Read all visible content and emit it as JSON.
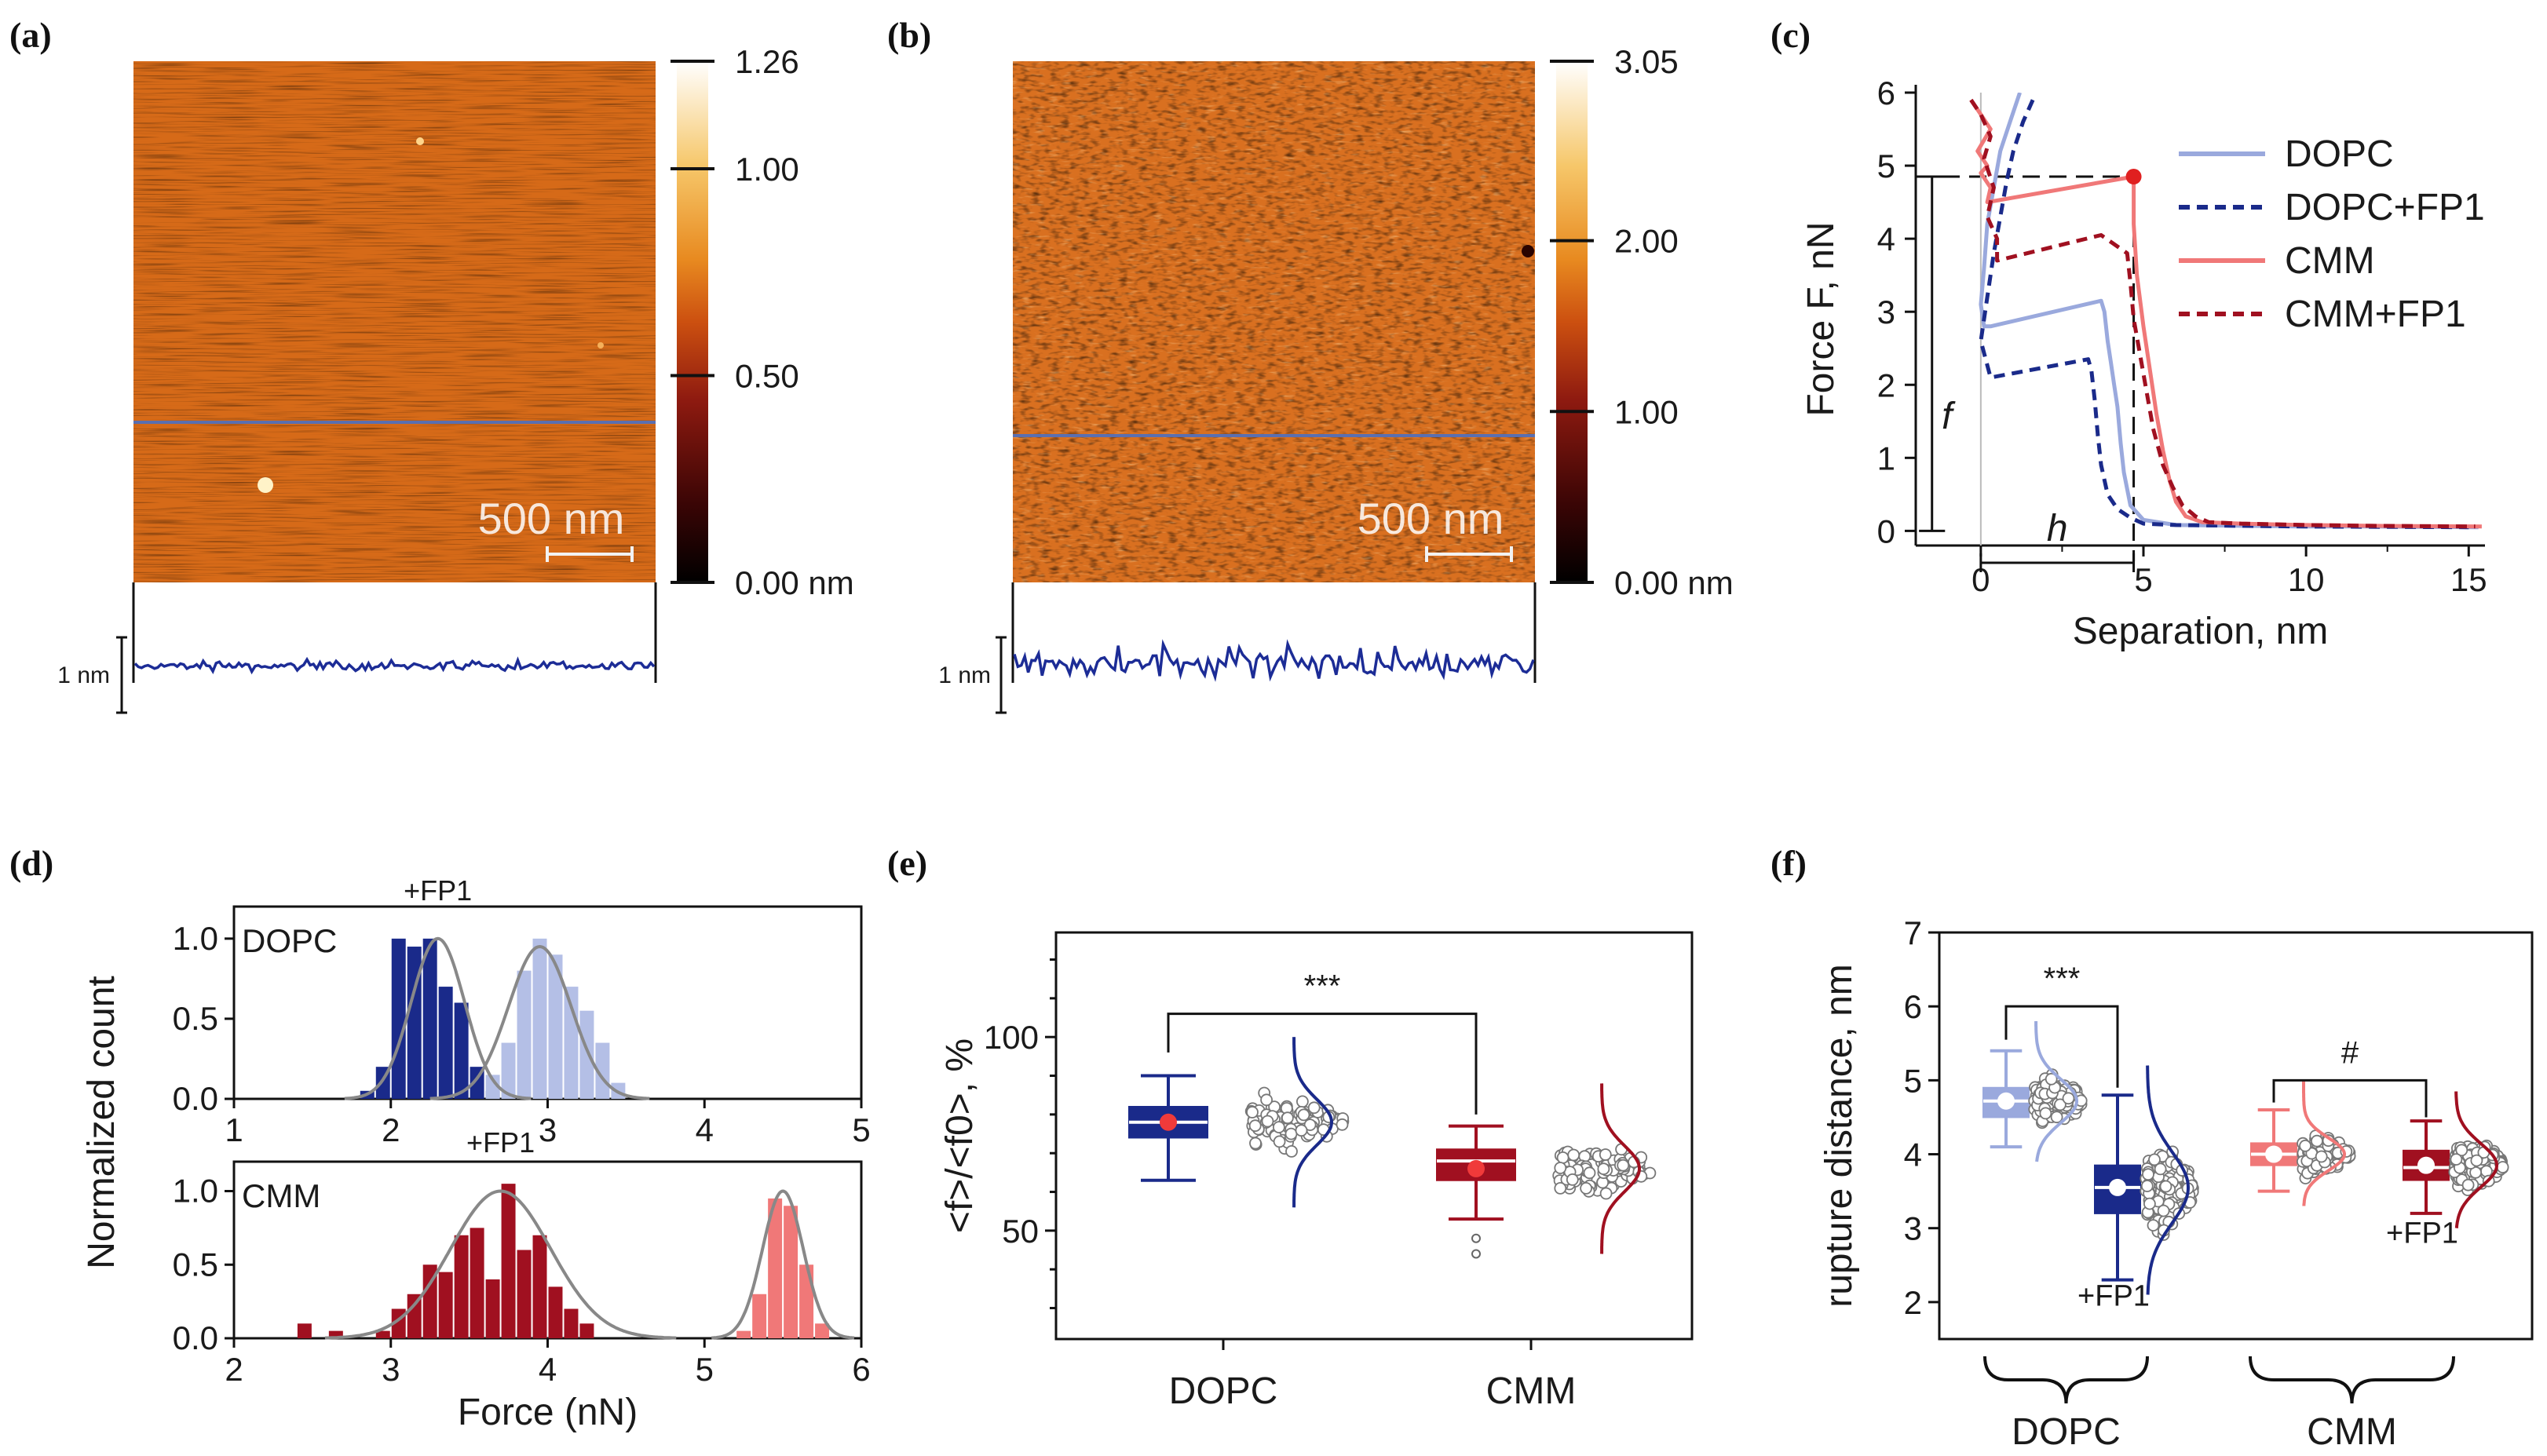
{
  "colors": {
    "dopc": "#9aa9dd",
    "dopc_fp1": "#1a2a8a",
    "cmm": "#f07878",
    "cmm_fp1": "#a01020",
    "fit": "#888888",
    "afm_line": "#5a6fb0",
    "profile": "#1c2c96"
  },
  "panels": {
    "a": {
      "label": "(a)",
      "colorbar_ticks": [
        "1.26",
        "1.00",
        "0.50",
        "0.00 nm"
      ],
      "colorbar_range": [
        0,
        1.26
      ],
      "colorbar_values": [
        1.26,
        1.0,
        0.5,
        0.0
      ],
      "scale_bar": "500 nm",
      "profile_scale": "1 nm"
    },
    "b": {
      "label": "(b)",
      "colorbar_ticks": [
        "3.05",
        "2.00",
        "1.00",
        "0.00 nm"
      ],
      "colorbar_range": [
        0,
        3.05
      ],
      "colorbar_values": [
        3.05,
        2.0,
        1.0,
        0.0
      ],
      "scale_bar": "500 nm",
      "profile_scale": "1 nm"
    },
    "c": {
      "label": "(c)"
    },
    "d": {
      "label": "(d)"
    },
    "e": {
      "label": "(e)"
    },
    "f": {
      "label": "(f)"
    }
  },
  "chart_data": [
    {
      "panel": "c",
      "type": "line",
      "xlabel": "Separation, nm",
      "ylabel": "Force F, nN",
      "xlim": [
        -2,
        15.5
      ],
      "ylim": [
        -0.2,
        6
      ],
      "xticks": [
        0,
        5,
        10,
        15
      ],
      "yticks": [
        0,
        1,
        2,
        3,
        4,
        5,
        6
      ],
      "annotations": [
        "f",
        "h"
      ],
      "series": [
        {
          "name": "DOPC",
          "style": "solid",
          "x": [
            1.2,
            0.9,
            0.6,
            0.4,
            0.2,
            0.1,
            0.0,
            0.1,
            0.3,
            3.7,
            3.8,
            3.9,
            4.0,
            4.1,
            4.2,
            4.3,
            4.4,
            4.6,
            5.0,
            6.0,
            8.0,
            10.0,
            12.0,
            15.3
          ],
          "y": [
            6.0,
            5.6,
            5.2,
            4.7,
            4.2,
            3.6,
            3.1,
            2.8,
            2.8,
            3.15,
            3.0,
            2.6,
            2.3,
            2.0,
            1.7,
            1.2,
            0.8,
            0.35,
            0.15,
            0.08,
            0.07,
            0.06,
            0.06,
            0.05
          ]
        },
        {
          "name": "DOPC+FP1",
          "style": "dashed",
          "x": [
            1.6,
            1.3,
            1.0,
            0.8,
            0.6,
            0.4,
            0.2,
            0.0,
            0.3,
            3.3,
            3.4,
            3.5,
            3.6,
            3.7,
            3.9,
            4.2,
            4.6,
            5.0,
            6.0,
            8.0,
            10.0,
            15.0
          ],
          "y": [
            5.9,
            5.6,
            5.2,
            4.8,
            4.3,
            3.8,
            3.2,
            2.6,
            2.1,
            2.35,
            2.2,
            1.8,
            1.3,
            0.9,
            0.5,
            0.3,
            0.18,
            0.1,
            0.08,
            0.07,
            0.06,
            0.05
          ]
        },
        {
          "name": "CMM",
          "style": "solid",
          "x": [
            -0.3,
            0.0,
            0.3,
            -0.1,
            0.2,
            0.0,
            0.3,
            0.2,
            4.7,
            4.7,
            4.8,
            5.0,
            5.2,
            5.4,
            5.6,
            5.8,
            6.0,
            6.3,
            6.8,
            8.0,
            10.0,
            12.0,
            15.4
          ],
          "y": [
            5.9,
            5.7,
            5.5,
            5.2,
            5.0,
            4.9,
            4.7,
            4.5,
            4.85,
            4.2,
            3.5,
            2.8,
            2.2,
            1.6,
            1.1,
            0.7,
            0.4,
            0.2,
            0.12,
            0.1,
            0.08,
            0.07,
            0.06
          ]
        },
        {
          "name": "CMM+FP1",
          "style": "dashed",
          "x": [
            -0.3,
            0.0,
            0.3,
            0.1,
            0.4,
            0.2,
            0.5,
            0.5,
            3.7,
            4.5,
            4.6,
            4.7,
            4.9,
            5.1,
            5.3,
            5.6,
            5.9,
            6.2,
            6.6,
            7.0,
            8.0,
            10.0,
            12.0,
            15.2
          ],
          "y": [
            5.9,
            5.7,
            5.4,
            5.1,
            4.7,
            4.3,
            4.0,
            3.7,
            4.05,
            3.8,
            3.4,
            2.9,
            2.4,
            1.9,
            1.4,
            0.9,
            0.6,
            0.35,
            0.2,
            0.12,
            0.1,
            0.08,
            0.07,
            0.06
          ]
        }
      ],
      "marker": {
        "x": 4.7,
        "y": 4.85
      }
    },
    {
      "panel": "d-top",
      "type": "bar",
      "subtitle": "DOPC",
      "annotation": "+FP1",
      "xlim": [
        1,
        5
      ],
      "ylim": [
        0,
        1.2
      ],
      "xticks": [
        1,
        2,
        3,
        4,
        5
      ],
      "yticks": [
        0.0,
        0.5,
        1.0
      ],
      "bin_width": 0.1,
      "series": [
        {
          "name": "DOPC+FP1",
          "centers": [
            1.85,
            1.95,
            2.05,
            2.15,
            2.25,
            2.35,
            2.45,
            2.55,
            2.65
          ],
          "values": [
            0.05,
            0.2,
            1.0,
            0.95,
            1.0,
            0.7,
            0.6,
            0.2,
            0.05
          ]
        },
        {
          "name": "DOPC",
          "centers": [
            2.65,
            2.75,
            2.85,
            2.95,
            3.05,
            3.15,
            3.25,
            3.35,
            3.45
          ],
          "values": [
            0.15,
            0.35,
            0.8,
            1.0,
            0.9,
            0.7,
            0.55,
            0.35,
            0.1
          ]
        }
      ],
      "fits": [
        {
          "mu": 2.3,
          "sigma": 0.17,
          "amp": 1.0
        },
        {
          "mu": 2.95,
          "sigma": 0.2,
          "amp": 0.95
        }
      ]
    },
    {
      "panel": "d-bottom",
      "type": "bar",
      "subtitle": "CMM",
      "annotation": "+FP1",
      "xlabel": "Force (nN)",
      "ylabel": "Normalized count",
      "xlim": [
        2,
        6
      ],
      "ylim": [
        0,
        1.2
      ],
      "xticks": [
        2,
        3,
        4,
        5,
        6
      ],
      "yticks": [
        0.0,
        0.5,
        1.0
      ],
      "bin_width": 0.1,
      "series": [
        {
          "name": "CMM+FP1",
          "centers": [
            2.45,
            2.65,
            2.95,
            3.05,
            3.15,
            3.25,
            3.35,
            3.45,
            3.55,
            3.65,
            3.75,
            3.85,
            3.95,
            4.05,
            4.15,
            4.25
          ],
          "values": [
            0.1,
            0.05,
            0.05,
            0.2,
            0.3,
            0.5,
            0.45,
            0.7,
            0.75,
            0.4,
            1.05,
            0.6,
            0.7,
            0.35,
            0.2,
            0.1
          ]
        },
        {
          "name": "CMM",
          "centers": [
            5.25,
            5.35,
            5.45,
            5.55,
            5.65,
            5.75
          ],
          "values": [
            0.05,
            0.3,
            0.95,
            0.9,
            0.5,
            0.1
          ]
        }
      ],
      "fits": [
        {
          "mu": 3.7,
          "sigma": 0.32,
          "amp": 1.0
        },
        {
          "mu": 5.5,
          "sigma": 0.13,
          "amp": 1.0
        }
      ]
    },
    {
      "panel": "e",
      "type": "box",
      "ylabel": "<f>/<f0>, %",
      "ylim": [
        22,
        127
      ],
      "yticks": [
        50,
        100
      ],
      "categories": [
        "DOPC",
        "CMM"
      ],
      "significance": "***",
      "boxes": [
        {
          "name": "DOPC",
          "min": 63,
          "q1": 74,
          "median": 78,
          "q3": 82,
          "max": 90,
          "mean": 78,
          "outliers": []
        },
        {
          "name": "CMM",
          "min": 53,
          "q1": 63,
          "median": 68,
          "q3": 71,
          "max": 77,
          "mean": 66,
          "outliers": [
            48,
            44
          ]
        }
      ]
    },
    {
      "panel": "f",
      "type": "box",
      "ylabel": "rupture distance, nm",
      "ylim": [
        1.5,
        7
      ],
      "yticks": [
        2,
        3,
        4,
        5,
        6,
        7
      ],
      "categories": [
        "DOPC",
        "CMM"
      ],
      "annotations": [
        "+FP1",
        "+FP1"
      ],
      "significance": [
        "***",
        "#"
      ],
      "boxes": [
        {
          "name": "DOPC",
          "min": 4.1,
          "q1": 4.5,
          "median": 4.72,
          "q3": 4.9,
          "max": 5.4,
          "mean": 4.72
        },
        {
          "name": "DOPC+FP1",
          "min": 2.3,
          "q1": 3.2,
          "median": 3.55,
          "q3": 3.85,
          "max": 4.8,
          "mean": 3.55
        },
        {
          "name": "CMM",
          "min": 3.5,
          "q1": 3.85,
          "median": 4.0,
          "q3": 4.15,
          "max": 4.6,
          "mean": 4.0
        },
        {
          "name": "CMM+FP1",
          "min": 3.2,
          "q1": 3.65,
          "median": 3.82,
          "q3": 4.05,
          "max": 4.45,
          "mean": 3.85
        }
      ]
    }
  ]
}
